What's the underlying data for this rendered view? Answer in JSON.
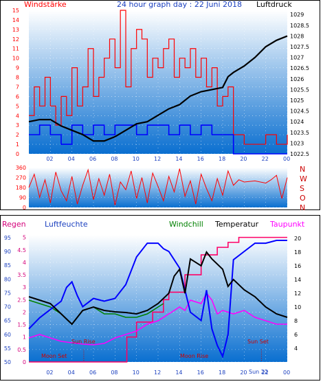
{
  "header": {
    "title": "24 hour graph day : 22 Juni 2018",
    "left_label": "Windstärke",
    "right_label": "Luftdruck"
  },
  "colors": {
    "panel_top": "#ffffff",
    "panel_bottom": "#0a6fd0",
    "wind_red": "#ff0000",
    "wind_blue": "#0000ff",
    "pressure": "#000000",
    "direction": "#ff0000",
    "humidity": "#0000ff",
    "temperature": "#000000",
    "windchill": "#008000",
    "dewpoint": "#ff00ff",
    "rain": "#ff0066",
    "label_regen": "#d4007a",
    "label_feuchte": "#1a3fbf",
    "label_windchill": "#008000",
    "label_temp": "#000000",
    "label_taupunkt": "#ff00ff",
    "label_dir": "#cc0000",
    "moon_sun": "#cc0000"
  },
  "x_ticks": [
    "02",
    "04",
    "06",
    "08",
    "10",
    "12",
    "14",
    "16",
    "18",
    "20",
    "22",
    "00"
  ],
  "chart_data": [
    {
      "id": "wind_pressure",
      "type": "line",
      "x_range": [
        0,
        24
      ],
      "wind_axis": {
        "range": [
          0,
          15
        ],
        "ticks": [
          "0",
          "1",
          "2",
          "3",
          "4",
          "5",
          "6",
          "7",
          "8",
          "9",
          "10",
          "11",
          "12",
          "13",
          "14",
          "15"
        ]
      },
      "pressure_axis": {
        "range": [
          1022.5,
          1029.2
        ],
        "ticks": [
          "1022.5",
          "1023",
          "1023.5",
          "1024",
          "1024.5",
          "1025",
          "1025.5",
          "1026",
          "1026.5",
          "1027",
          "1027.5",
          "1028",
          "1028.5",
          "1029"
        ]
      },
      "series": [
        {
          "name": "Luftdruck",
          "x": [
            0.0,
            1.0,
            2.0,
            3.0,
            4.0,
            5.0,
            6.0,
            7.0,
            8.0,
            9.0,
            10.0,
            11.0,
            12.0,
            13.0,
            14.0,
            15.0,
            16.0,
            17.0,
            18.0,
            18.5,
            19.0,
            20.0,
            21.0,
            22.0,
            23.0,
            24.0
          ],
          "values": [
            1024.0,
            1024.1,
            1024.1,
            1023.8,
            1023.6,
            1023.4,
            1023.1,
            1023.1,
            1023.3,
            1023.6,
            1023.9,
            1024.0,
            1024.3,
            1024.6,
            1024.8,
            1025.2,
            1025.4,
            1025.5,
            1025.6,
            1026.1,
            1026.3,
            1026.6,
            1027.0,
            1027.5,
            1027.8,
            1028.0
          ]
        },
        {
          "name": "Wind",
          "x": [
            0,
            0.5,
            1.0,
            1.5,
            2.0,
            2.5,
            3.0,
            3.5,
            4.0,
            4.5,
            5.0,
            5.5,
            6.0,
            6.5,
            7.0,
            7.5,
            8.0,
            8.5,
            9.0,
            9.5,
            10.0,
            10.5,
            11.0,
            11.5,
            12.0,
            12.5,
            13.0,
            13.5,
            14.0,
            14.5,
            15.0,
            15.5,
            16.0,
            16.5,
            17.0,
            17.5,
            18.0,
            18.5,
            19.0,
            20.0,
            21.0,
            22.0,
            23.0,
            24.0
          ],
          "values": [
            4,
            7,
            5,
            8,
            5,
            3,
            6,
            4,
            9,
            5,
            7,
            11,
            6,
            8,
            10,
            12,
            9,
            15,
            7,
            11,
            13,
            12,
            8,
            10,
            9,
            11,
            12,
            8,
            10,
            9,
            11,
            8,
            10,
            7,
            9,
            5,
            6,
            7,
            2,
            1,
            1,
            2,
            1,
            2
          ]
        },
        {
          "name": "Boeen",
          "x": [
            0,
            1.0,
            2.0,
            3.0,
            4.0,
            5.0,
            6.0,
            7.0,
            8.0,
            9.0,
            10.0,
            11.0,
            12.0,
            13.0,
            14.0,
            15.0,
            16.0,
            17.0,
            18.0,
            19.0,
            20.0,
            24.0
          ],
          "values": [
            2,
            3,
            2,
            1,
            3,
            2,
            3,
            2,
            3,
            3,
            2,
            3,
            3,
            2,
            3,
            2,
            3,
            2,
            2,
            0,
            0,
            0
          ]
        }
      ]
    },
    {
      "id": "wind_direction",
      "type": "line",
      "x_range": [
        0,
        24
      ],
      "y_range": [
        0,
        360
      ],
      "y_ticks": [
        "0",
        "90",
        "180",
        "270",
        "360"
      ],
      "side_labels": [
        "N",
        "W",
        "S",
        "O",
        "N"
      ],
      "series": [
        {
          "name": "Windrichtung",
          "x": [
            0,
            0.5,
            1.0,
            1.5,
            2.0,
            2.5,
            3.0,
            3.5,
            4.0,
            4.5,
            5.0,
            5.5,
            6.0,
            6.5,
            7.0,
            7.5,
            8.0,
            8.5,
            9.0,
            9.5,
            10.0,
            10.5,
            11.0,
            11.5,
            12.0,
            12.5,
            13.0,
            13.5,
            14.0,
            14.5,
            15.0,
            15.5,
            16.0,
            16.5,
            17.0,
            17.5,
            18.0,
            18.5,
            19.0,
            19.5,
            20.0,
            21.0,
            22.0,
            22.5,
            23.0,
            23.5,
            24.0
          ],
          "values": [
            180,
            300,
            90,
            250,
            40,
            320,
            150,
            60,
            280,
            30,
            200,
            340,
            70,
            260,
            110,
            300,
            20,
            230,
            160,
            330,
            80,
            270,
            40,
            310,
            190,
            60,
            280,
            140,
            350,
            100,
            240,
            30,
            300,
            170,
            60,
            260,
            110,
            330,
            200,
            250,
            230,
            240,
            220,
            250,
            290,
            80,
            270
          ]
        }
      ]
    },
    {
      "id": "climate",
      "type": "line",
      "x_range": [
        0,
        24
      ],
      "left_axes": {
        "regen": {
          "range": [
            0,
            5.1
          ],
          "ticks": [
            "0",
            "0.5",
            "1",
            "1.5",
            "2",
            "2.5",
            "3",
            "3.5",
            "4",
            "4.5",
            "5"
          ]
        },
        "luftfeuchte": {
          "range": [
            50,
            96
          ],
          "ticks": [
            "50",
            "55",
            "60",
            "65",
            "70",
            "75",
            "80",
            "85",
            "90",
            "95"
          ]
        }
      },
      "right_axis": {
        "range": [
          2,
          20.5
        ],
        "ticks": [
          "4",
          "6",
          "8",
          "10",
          "12",
          "14",
          "16",
          "18",
          "20"
        ]
      },
      "labels": {
        "regen": "Regen",
        "luftfeuchte": "Luftfeuchte",
        "windchill": "Windchill",
        "temperatur": "Temperatur",
        "taupunkt": "Taupunkt"
      },
      "annotations": {
        "moon_set": "Moon Set",
        "sun_rise": "Sun Rise",
        "moon_rise": "Moon Rise",
        "sun_set": "Sun Set",
        "sun_set_time": "Sun 22"
      },
      "series": [
        {
          "name": "Luftfeuchte",
          "axis": "luftfeuchte",
          "x": [
            0,
            1.0,
            2.0,
            3.0,
            3.5,
            4.0,
            4.5,
            5.0,
            6.0,
            7.0,
            8.0,
            9.0,
            10.0,
            11.0,
            12.0,
            12.5,
            13.0,
            14.0,
            14.5,
            15.0,
            16.0,
            16.5,
            17.0,
            17.5,
            18.0,
            18.5,
            19.0,
            20.0,
            21.0,
            22.0,
            23.0,
            24.0
          ],
          "values": [
            62,
            66,
            69,
            72,
            77,
            79,
            74,
            70,
            73,
            72,
            73,
            78,
            88,
            93,
            93,
            91,
            90,
            84,
            76,
            68,
            65,
            76,
            62,
            56,
            52,
            60,
            87,
            90,
            93,
            93,
            94,
            94
          ]
        },
        {
          "name": "Temperatur",
          "axis": "right",
          "x": [
            0,
            1.0,
            2.0,
            3.0,
            4.0,
            5.0,
            6.0,
            7.0,
            8.0,
            9.0,
            10.0,
            11.0,
            12.0,
            13.0,
            13.5,
            14.0,
            14.5,
            15.0,
            16.0,
            16.5,
            17.0,
            18.0,
            18.5,
            19.0,
            20.0,
            21.0,
            22.0,
            23.0,
            24.0
          ],
          "values": [
            11.5,
            11.0,
            10.5,
            9.0,
            7.5,
            9.5,
            10.0,
            9.5,
            9.3,
            9.2,
            9.0,
            9.5,
            10.5,
            12.0,
            14.5,
            15.5,
            12.0,
            17.0,
            16.0,
            18.0,
            17.0,
            15.5,
            13.0,
            14.0,
            12.5,
            11.5,
            10.0,
            9.0,
            8.5
          ]
        },
        {
          "name": "Windchill",
          "axis": "right",
          "x": [
            0,
            1.0,
            2.0,
            3.0,
            4.0,
            5.0,
            6.0,
            7.0,
            8.0,
            9.0,
            10.0,
            11.0,
            12.0,
            12.5
          ],
          "values": [
            11.0,
            10.5,
            10.0,
            9.0,
            7.5,
            9.5,
            10.0,
            9.0,
            9.0,
            8.5,
            8.5,
            9.0,
            10.0,
            10.5
          ]
        },
        {
          "name": "Taupunkt",
          "axis": "right",
          "x": [
            0,
            1.0,
            2.0,
            3.0,
            4.0,
            5.0,
            6.0,
            7.0,
            8.0,
            9.0,
            10.0,
            11.0,
            12.0,
            13.0,
            14.0,
            14.5,
            15.0,
            16.0,
            16.5,
            17.0,
            17.5,
            18.0,
            19.0,
            20.0,
            21.0,
            22.0,
            23.0,
            24.0
          ],
          "values": [
            5.5,
            6.0,
            5.5,
            5.0,
            4.8,
            4.6,
            4.5,
            4.7,
            5.5,
            6.0,
            6.5,
            7.5,
            8.0,
            9.0,
            10.0,
            9.5,
            11.0,
            10.5,
            12.0,
            11.0,
            9.0,
            9.5,
            9.0,
            9.5,
            8.5,
            8.0,
            7.5,
            7.5
          ]
        },
        {
          "name": "Regen",
          "axis": "regen",
          "x": [
            0,
            9.0,
            9.1,
            10.0,
            11.5,
            12.5,
            13.0,
            14.5,
            16.0,
            17.5,
            18.5,
            19.5,
            21.0,
            24.0
          ],
          "values": [
            0,
            0,
            1.0,
            1.6,
            2.0,
            2.5,
            2.8,
            3.5,
            4.3,
            4.6,
            4.8,
            5.0,
            5.0,
            5.0
          ]
        }
      ]
    }
  ]
}
